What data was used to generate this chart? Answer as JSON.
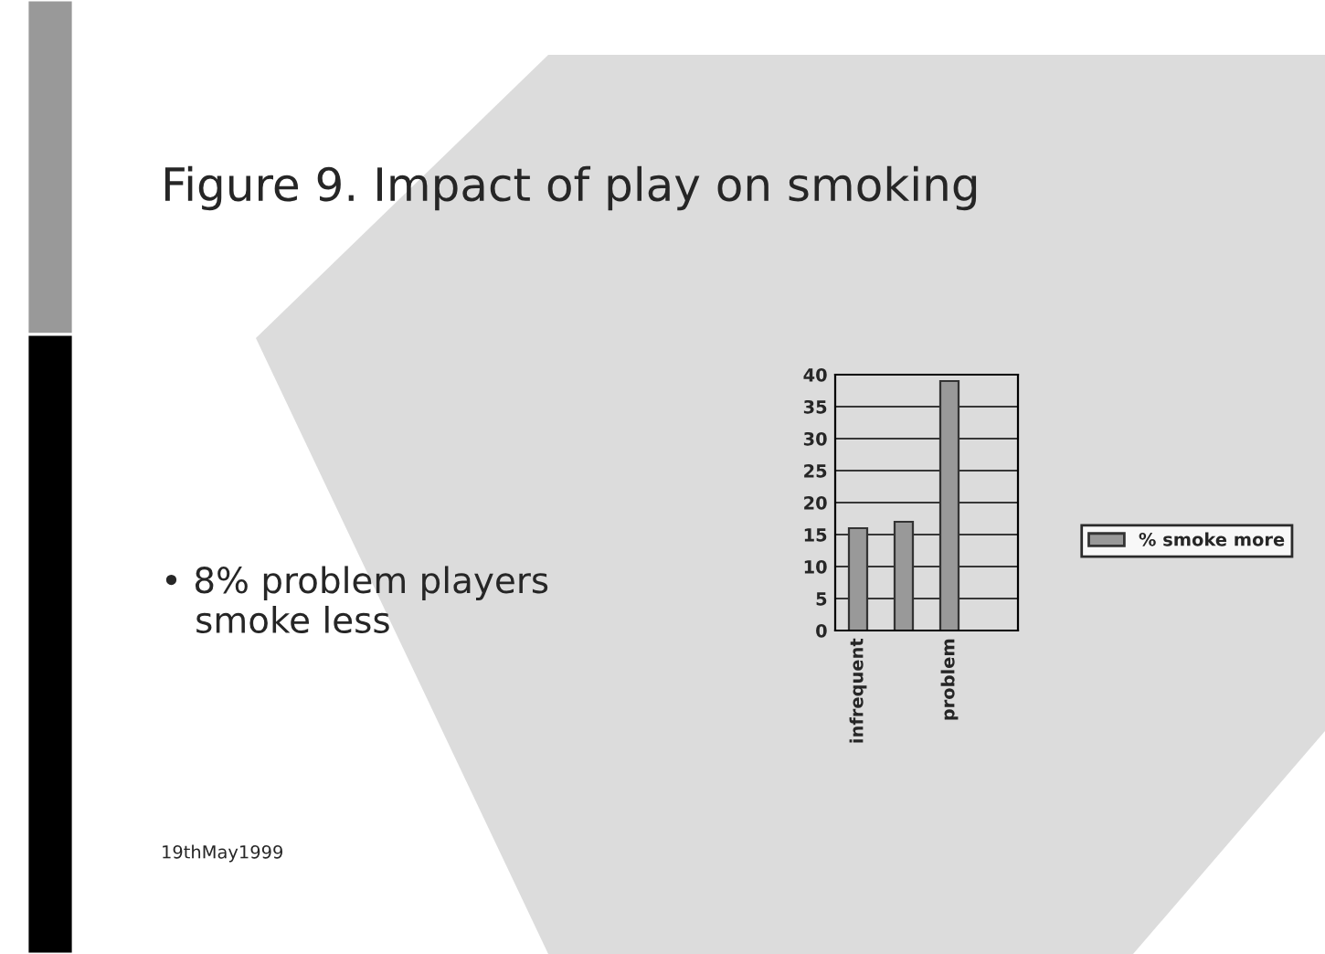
{
  "chart_data": {
    "type": "bar",
    "title": "Figure 9. Impact of play on smoking",
    "annotations": [
      "• 8% problem players\n   smoke less",
      "19thMay1999"
    ],
    "categories": [
      "infrequent",
      null,
      "problem",
      null
    ],
    "series": [
      {
        "name": "% smoke more",
        "color": "#999999",
        "values": [
          16,
          17,
          39,
          null
        ]
      }
    ],
    "ylim": [
      0,
      40
    ],
    "yticks": [
      0,
      5,
      10,
      15,
      20,
      25,
      30,
      35,
      40
    ],
    "grid": "y",
    "legend": "right"
  }
}
